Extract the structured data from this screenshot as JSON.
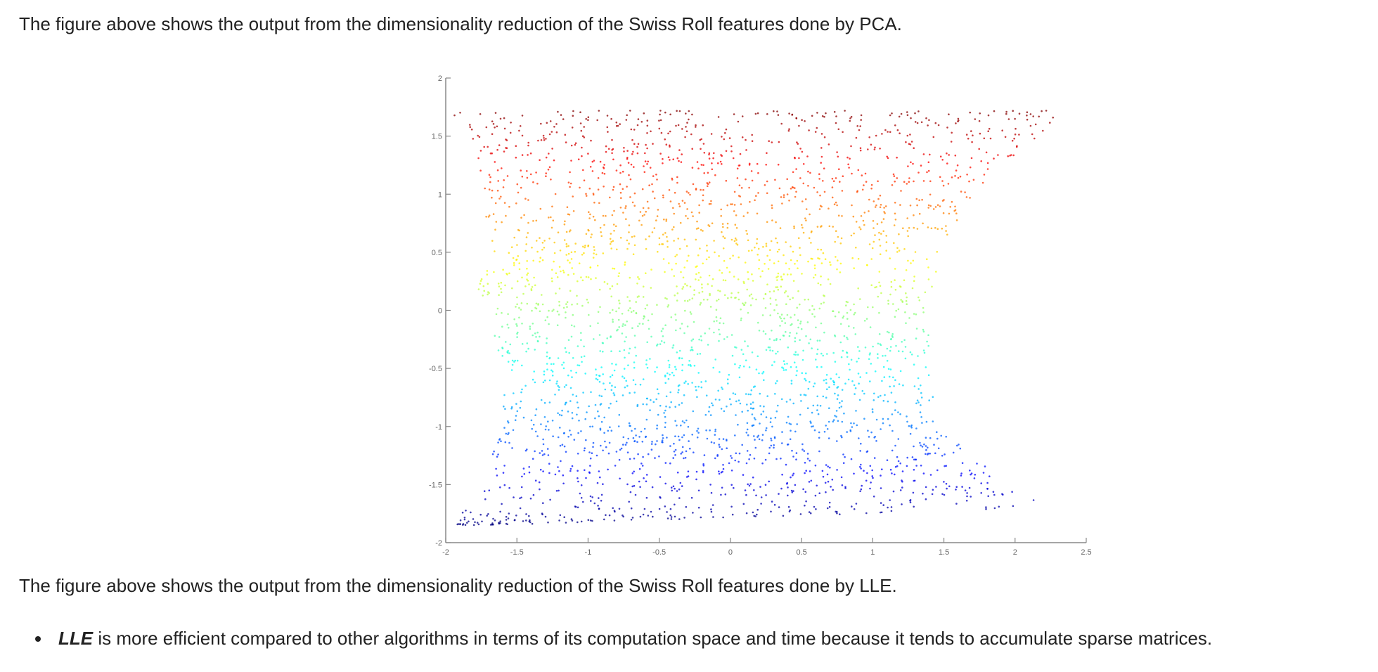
{
  "text": {
    "caption_pca": "The figure above shows the output from the dimensionality reduction of the Swiss Roll features done by PCA.",
    "caption_lle": "The figure above shows the output from the dimensionality reduction of the Swiss Roll features done by LLE.",
    "bullet_term": "LLE",
    "bullet_rest": " is more efficient compared to other algorithms in terms of its computation space and time because it tends to accumulate sparse matrices."
  },
  "chart_data": {
    "type": "scatter",
    "title": "",
    "xlabel": "",
    "ylabel": "",
    "xlim": [
      -2,
      2.5
    ],
    "ylim": [
      -2,
      2
    ],
    "xticks": [
      -2,
      -1.5,
      -1,
      -0.5,
      0,
      0.5,
      1,
      1.5,
      2,
      2.5
    ],
    "xtick_labels": [
      "-2",
      "-1.5",
      "-1",
      "-0.5",
      "0",
      "0.5",
      "1",
      "1.5",
      "2",
      "2.5"
    ],
    "yticks": [
      -2,
      -1.5,
      -1,
      -0.5,
      0,
      0.5,
      1,
      1.5,
      2
    ],
    "ytick_labels": [
      "-2",
      "-1.5",
      "-1",
      "-0.5",
      "0",
      "0.5",
      "1",
      "1.5",
      "2"
    ],
    "grid": false,
    "legend": "none",
    "colormap": "jet",
    "color_by": "y",
    "point_count": 3000,
    "point_cloud": {
      "y_range": [
        -1.85,
        1.72
      ],
      "boundary": [
        {
          "y": 1.72,
          "x_left": -1.98,
          "x_right": 2.35
        },
        {
          "y": 1.5,
          "x_left": -1.85,
          "x_right": 2.2
        },
        {
          "y": 1.0,
          "x_left": -1.72,
          "x_right": 1.7
        },
        {
          "y": 0.5,
          "x_left": -1.73,
          "x_right": 1.48
        },
        {
          "y": 0.2,
          "x_left": -1.78,
          "x_right": 1.42
        },
        {
          "y": 0.0,
          "x_left": -1.7,
          "x_right": 1.4
        },
        {
          "y": -0.5,
          "x_left": -1.6,
          "x_right": 1.4
        },
        {
          "y": -1.0,
          "x_left": -1.6,
          "x_right": 1.45
        },
        {
          "y": -1.5,
          "x_left": -1.75,
          "x_right": 1.95
        },
        {
          "y": -1.7,
          "x_left": -1.88,
          "x_right": 2.25
        },
        {
          "y": -1.85,
          "x_left": -1.95,
          "x_right": -1.7
        }
      ]
    }
  }
}
